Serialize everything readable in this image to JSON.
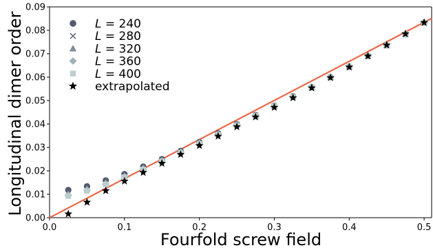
{
  "chart_data": {
    "type": "scatter",
    "title": "",
    "xlabel": "Fourfold screw field",
    "ylabel": "Longitudinal dimer order",
    "xlim": [
      0,
      0.51
    ],
    "ylim": [
      0,
      0.09
    ],
    "xticks": [
      0.0,
      0.1,
      0.2,
      0.3,
      0.4,
      0.5
    ],
    "xtick_labels": [
      "0.0",
      "0.1",
      "0.2",
      "0.3",
      "0.4",
      "0.5"
    ],
    "yticks": [
      0.0,
      0.01,
      0.02,
      0.03,
      0.04,
      0.05,
      0.06,
      0.07,
      0.08,
      0.09
    ],
    "ytick_labels": [
      "0.00",
      "0.01",
      "0.02",
      "0.03",
      "0.04",
      "0.05",
      "0.06",
      "0.07",
      "0.08",
      "0.09"
    ],
    "legend_position": "top-left",
    "grid": false,
    "x": [
      0.025,
      0.05,
      0.075,
      0.1,
      0.125,
      0.15,
      0.175,
      0.2,
      0.225,
      0.25,
      0.275,
      0.3,
      0.325,
      0.35,
      0.375,
      0.4,
      0.425,
      0.45,
      0.475,
      0.5
    ],
    "series": [
      {
        "name": "L = 240",
        "var": "L",
        "op": " = ",
        "num": "240",
        "marker": "circle",
        "color": "#545a6f",
        "values": [
          0.0118,
          0.0134,
          0.0159,
          0.0186,
          0.0218,
          0.025,
          0.0285,
          0.0322,
          0.036,
          0.0399,
          0.0438,
          0.0478,
          0.0518,
          0.0558,
          0.06,
          0.0645,
          0.069,
          0.0736,
          0.0783,
          0.0833
        ]
      },
      {
        "name": "L = 280",
        "var": "L",
        "op": " = ",
        "num": "280",
        "marker": "x",
        "color": "#545a6f",
        "values": [
          0.011,
          0.0128,
          0.0154,
          0.0182,
          0.0214,
          0.0247,
          0.0282,
          0.032,
          0.0358,
          0.0398,
          0.0437,
          0.0477,
          0.0517,
          0.0557,
          0.06,
          0.0644,
          0.069,
          0.0736,
          0.0783,
          0.0833
        ]
      },
      {
        "name": "L = 320",
        "var": "L",
        "op": " = ",
        "num": "320",
        "marker": "triangle",
        "color": "#7d8d9a",
        "values": [
          0.0103,
          0.0124,
          0.015,
          0.0179,
          0.0212,
          0.0245,
          0.0281,
          0.0319,
          0.0357,
          0.0397,
          0.0436,
          0.0477,
          0.0517,
          0.0557,
          0.06,
          0.0644,
          0.069,
          0.0736,
          0.0783,
          0.0833
        ]
      },
      {
        "name": "L = 360",
        "var": "L",
        "op": " = ",
        "num": "360",
        "marker": "diamond",
        "color": "#9fb3b7",
        "values": [
          0.0097,
          0.0119,
          0.0146,
          0.0176,
          0.0209,
          0.0243,
          0.028,
          0.0318,
          0.0356,
          0.0396,
          0.0436,
          0.0476,
          0.0516,
          0.0557,
          0.06,
          0.0644,
          0.069,
          0.0736,
          0.0783,
          0.0833
        ]
      },
      {
        "name": "L = 400",
        "var": "L",
        "op": " = ",
        "num": "400",
        "marker": "square",
        "color": "#bccfcf",
        "values": [
          0.0092,
          0.0114,
          0.0142,
          0.0173,
          0.0206,
          0.0241,
          0.0278,
          0.0316,
          0.0355,
          0.0395,
          0.0435,
          0.0476,
          0.0516,
          0.0557,
          0.0599,
          0.0644,
          0.069,
          0.0736,
          0.0783,
          0.0833
        ]
      },
      {
        "name": "extrapolated",
        "marker": "star",
        "color": "#000000",
        "values": [
          0.0016,
          0.0066,
          0.0115,
          0.0156,
          0.0193,
          0.0232,
          0.027,
          0.0308,
          0.0348,
          0.0388,
          0.043,
          0.0471,
          0.0512,
          0.0554,
          0.0598,
          0.0643,
          0.069,
          0.0737,
          0.0785,
          0.0833
        ]
      }
    ],
    "fit_line": {
      "color": "#e8684a",
      "x": [
        0.0,
        0.51
      ],
      "y": [
        0.0,
        0.0851
      ]
    }
  }
}
